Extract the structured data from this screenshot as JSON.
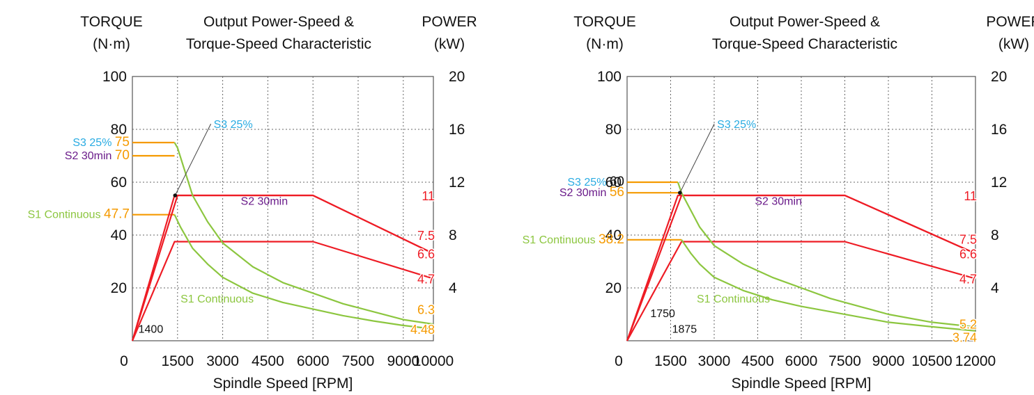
{
  "colors": {
    "orange": "#f59a00",
    "red": "#ee1c25",
    "green": "#8cc63f",
    "purple": "#6a1b8a",
    "cyan": "#29abe2",
    "grid": "#666666",
    "text": "#111111"
  },
  "chart_data": [
    {
      "type": "line",
      "title": "Output Power-Speed & Torque-Speed Characteristic",
      "title_lines": [
        "Output Power-Speed &",
        "Torque-Speed Characteristic"
      ],
      "ylabel_left": [
        "TORQUE",
        "(N·m)"
      ],
      "ylabel_right": [
        "POWER",
        "(kW)"
      ],
      "xlabel": "Spindle Speed [RPM]",
      "xlim": [
        0,
        10000
      ],
      "x_ticks": [
        1500,
        3000,
        4500,
        6000,
        7500,
        9000,
        10000
      ],
      "x_tick_labels": [
        "1500",
        "3000",
        "4500",
        "6000",
        "7500",
        "9000",
        "10000"
      ],
      "origin_label": "0",
      "ylim_left": [
        0,
        100
      ],
      "y_ticks_left": [
        20,
        40,
        60,
        80,
        100
      ],
      "ylim_right": [
        0,
        20
      ],
      "y_ticks_right": [
        4,
        8,
        12,
        16,
        20
      ],
      "grid": true,
      "series": [
        {
          "name": "S3 25%",
          "measure": "torque",
          "color": "orange",
          "points": [
            [
              0,
              75
            ],
            [
              1400,
              75
            ]
          ]
        },
        {
          "name": "S2 30min",
          "measure": "torque",
          "color": "orange",
          "points": [
            [
              0,
              70
            ],
            [
              1400,
              70
            ]
          ]
        },
        {
          "name": "S1 Continuous",
          "measure": "torque",
          "color": "orange",
          "points": [
            [
              0,
              47.7
            ],
            [
              1400,
              47.7
            ]
          ]
        },
        {
          "name": "S2 30min",
          "measure": "power",
          "color": "red",
          "points": [
            [
              0,
              0
            ],
            [
              1400,
              11
            ],
            [
              6000,
              11
            ],
            [
              10000,
              6.6
            ]
          ]
        },
        {
          "name": "S3 25%",
          "measure": "power",
          "color": "red",
          "points": [
            [
              0,
              0
            ],
            [
              1500,
              11
            ],
            [
              6000,
              11
            ],
            [
              10000,
              6.6
            ]
          ]
        },
        {
          "name": "S1 Continuous",
          "measure": "power",
          "color": "red",
          "points": [
            [
              0,
              0
            ],
            [
              1400,
              7.5
            ],
            [
              6000,
              7.5
            ],
            [
              10000,
              4.7
            ]
          ]
        },
        {
          "name": "S3 25%",
          "measure": "torque",
          "color": "green",
          "points": [
            [
              1400,
              75
            ],
            [
              1500,
              73
            ],
            [
              2000,
              55
            ],
            [
              2500,
              45
            ],
            [
              3000,
              37
            ],
            [
              4000,
              28
            ],
            [
              5000,
              22
            ],
            [
              6000,
              18
            ],
            [
              7000,
              14
            ],
            [
              8000,
              11
            ],
            [
              9000,
              8
            ],
            [
              10000,
              6.3
            ]
          ]
        },
        {
          "name": "S1 Continuous",
          "measure": "torque",
          "color": "green",
          "points": [
            [
              1400,
              47.7
            ],
            [
              1600,
              43
            ],
            [
              2000,
              35
            ],
            [
              2500,
              29
            ],
            [
              3000,
              24
            ],
            [
              4000,
              18
            ],
            [
              5000,
              14.5
            ],
            [
              6000,
              12
            ],
            [
              7000,
              9.5
            ],
            [
              8000,
              7.5
            ],
            [
              9000,
              5.8
            ],
            [
              10000,
              4.48
            ]
          ]
        }
      ],
      "annotations": {
        "left": [
          {
            "label": "S3 25%",
            "value": "75",
            "y": 75,
            "label_color": "cyan",
            "value_color": "orange"
          },
          {
            "label": "S2 30min",
            "value": "70",
            "y": 70,
            "label_color": "purple",
            "value_color": "orange"
          },
          {
            "label": "S1 Continuous",
            "value": "47.7",
            "y": 47.7,
            "label_color": "green",
            "value_color": "orange"
          }
        ],
        "right": [
          {
            "value": "11",
            "y": 55,
            "color": "red"
          },
          {
            "value": "7.5",
            "y": 40,
            "color": "red"
          },
          {
            "value": "6.6",
            "y": 33,
            "color": "red"
          },
          {
            "value": "4.7",
            "y": 23.5,
            "color": "red"
          },
          {
            "value": "6.3",
            "y": 12,
            "color": "orange"
          },
          {
            "value": "4.48",
            "y": 4.5,
            "color": "orange"
          }
        ],
        "in_plot": [
          {
            "text": "S2 30min",
            "x": 3600,
            "y": 51.5,
            "color": "purple"
          },
          {
            "text": "S1 Continuous",
            "x": 1600,
            "y": 14.5,
            "color": "green"
          },
          {
            "text": "S3 25%",
            "x": 2700,
            "y": 80.5,
            "color": "cyan",
            "pointer_to": [
              1420,
              55
            ]
          },
          {
            "text": "1400",
            "x": 200,
            "y": 3,
            "color": "text"
          }
        ]
      }
    },
    {
      "type": "line",
      "title": "Output Power-Speed & Torque-Speed Characteristic",
      "title_lines": [
        "Output Power-Speed &",
        "Torque-Speed Characteristic"
      ],
      "ylabel_left": [
        "TORQUE",
        "(N·m)"
      ],
      "ylabel_right": [
        "POWER",
        "(kW)"
      ],
      "xlabel": "Spindle Speed [RPM]",
      "xlim": [
        0,
        12000
      ],
      "x_ticks": [
        1500,
        3000,
        4500,
        6000,
        7500,
        9000,
        10500,
        12000
      ],
      "x_tick_labels": [
        "1500",
        "3000",
        "4500",
        "6000",
        "7500",
        "9000",
        "10500",
        "12000"
      ],
      "origin_label": "0",
      "ylim_left": [
        0,
        100
      ],
      "y_ticks_left": [
        20,
        40,
        60,
        80,
        100
      ],
      "ylim_right": [
        0,
        20
      ],
      "y_ticks_right": [
        4,
        8,
        12,
        16,
        20
      ],
      "grid": true,
      "series": [
        {
          "name": "S3 25%",
          "measure": "torque",
          "color": "orange",
          "points": [
            [
              0,
              60
            ],
            [
              1750,
              60
            ]
          ]
        },
        {
          "name": "S2 30min",
          "measure": "torque",
          "color": "orange",
          "points": [
            [
              0,
              56
            ],
            [
              1875,
              56
            ]
          ]
        },
        {
          "name": "S1 Continuous",
          "measure": "torque",
          "color": "orange",
          "points": [
            [
              0,
              38.2
            ],
            [
              1875,
              38.2
            ]
          ]
        },
        {
          "name": "S2 30min",
          "measure": "power",
          "color": "red",
          "points": [
            [
              0,
              0
            ],
            [
              1750,
              11
            ],
            [
              7500,
              11
            ],
            [
              12000,
              6.6
            ]
          ]
        },
        {
          "name": "S3 25%",
          "measure": "power",
          "color": "red",
          "points": [
            [
              0,
              0
            ],
            [
              1875,
              11
            ],
            [
              7500,
              11
            ],
            [
              12000,
              6.6
            ]
          ]
        },
        {
          "name": "S1 Continuous",
          "measure": "power",
          "color": "red",
          "points": [
            [
              0,
              0
            ],
            [
              1875,
              7.5
            ],
            [
              7500,
              7.5
            ],
            [
              12000,
              4.7
            ]
          ]
        },
        {
          "name": "S3 25%",
          "measure": "torque",
          "color": "green",
          "points": [
            [
              1750,
              60
            ],
            [
              1875,
              56
            ],
            [
              2500,
              43
            ],
            [
              3000,
              36
            ],
            [
              4000,
              29
            ],
            [
              5000,
              24
            ],
            [
              6000,
              20
            ],
            [
              7000,
              16
            ],
            [
              8000,
              13
            ],
            [
              9000,
              10
            ],
            [
              10500,
              7
            ],
            [
              12000,
              5.2
            ]
          ]
        },
        {
          "name": "S1 Continuous",
          "measure": "torque",
          "color": "green",
          "points": [
            [
              1875,
              38.2
            ],
            [
              2200,
              33
            ],
            [
              2500,
              29
            ],
            [
              3000,
              24
            ],
            [
              4000,
              19
            ],
            [
              5000,
              15.5
            ],
            [
              6000,
              13
            ],
            [
              7000,
              11
            ],
            [
              8000,
              9
            ],
            [
              9000,
              7
            ],
            [
              10500,
              5.3
            ],
            [
              12000,
              3.74
            ]
          ]
        }
      ],
      "annotations": {
        "left": [
          {
            "label": "S3 25%",
            "value": "60",
            "y": 60,
            "label_color": "cyan",
            "value_color": "text"
          },
          {
            "label": "S2 30min",
            "value": "56",
            "y": 56,
            "label_color": "purple",
            "value_color": "orange"
          },
          {
            "label": "S1 Continuous",
            "value": "38.2",
            "y": 38.2,
            "label_color": "green",
            "value_color": "orange"
          }
        ],
        "right": [
          {
            "value": "11",
            "y": 55,
            "color": "red"
          },
          {
            "value": "7.5",
            "y": 38.5,
            "color": "red"
          },
          {
            "value": "6.6",
            "y": 33,
            "color": "red"
          },
          {
            "value": "4.7",
            "y": 23.5,
            "color": "red"
          },
          {
            "value": "5.2",
            "y": 6.5,
            "color": "orange"
          },
          {
            "value": "3.74",
            "y": 1.5,
            "color": "orange"
          }
        ],
        "in_plot": [
          {
            "text": "S2 30min",
            "x": 4400,
            "y": 51.5,
            "color": "purple"
          },
          {
            "text": "S1 Continuous",
            "x": 2400,
            "y": 14.5,
            "color": "green"
          },
          {
            "text": "S3 25%",
            "x": 3100,
            "y": 80.5,
            "color": "cyan",
            "pointer_to": [
              1820,
              56
            ]
          },
          {
            "text": "1750",
            "x": 800,
            "y": 9,
            "color": "text"
          },
          {
            "text": "1875",
            "x": 1550,
            "y": 3,
            "color": "text"
          }
        ]
      }
    }
  ]
}
